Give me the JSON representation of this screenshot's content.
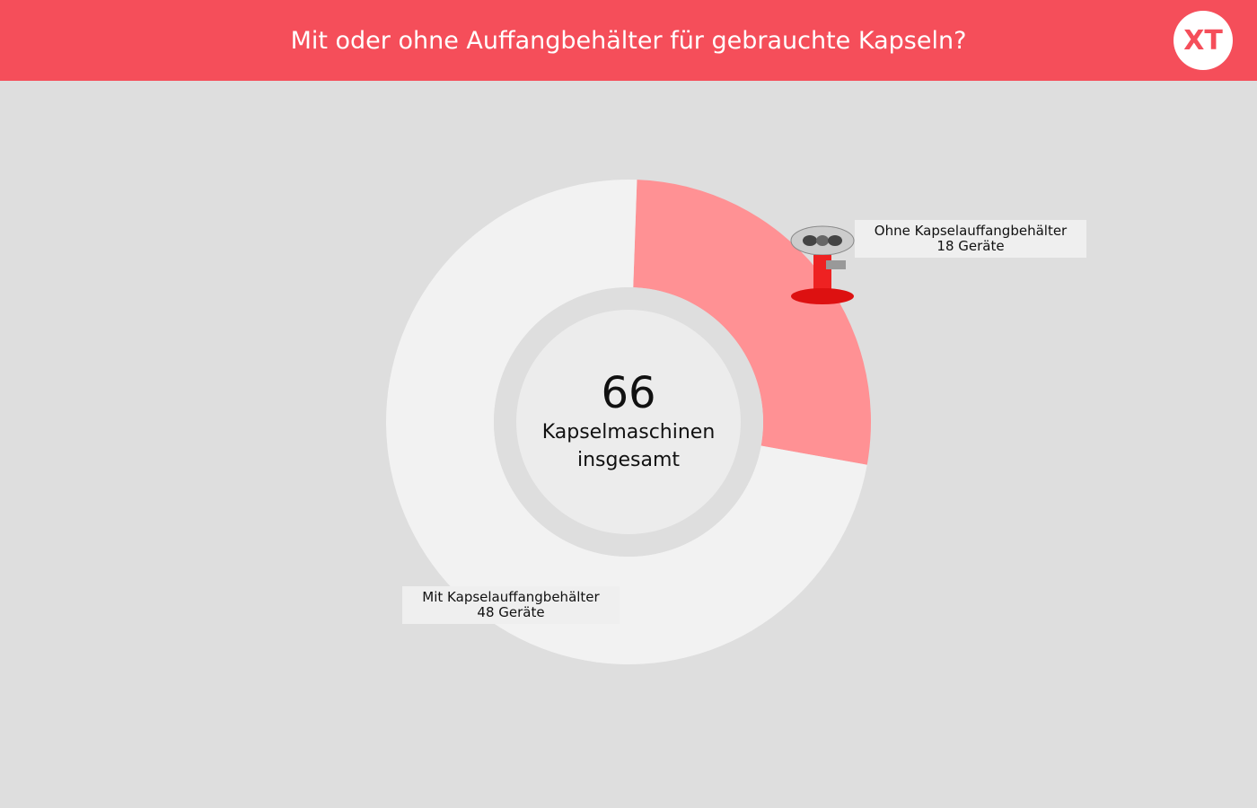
{
  "header": {
    "title": "Mit oder ohne Auffangbehälter für gebrauchte Kapseln?",
    "logo": "XT"
  },
  "chart_data": {
    "type": "donut",
    "center_value": 66,
    "center_label": "Kapselmaschinen insgesamt",
    "categories": [
      "Ohne Kapselauffangbehälter",
      "Mit Kapselauffangbehälter"
    ],
    "values": [
      18,
      48
    ],
    "value_labels": [
      "18 Geräte",
      "48 Geräte"
    ],
    "colors": [
      "#ff9194",
      "#f2f2f2"
    ]
  }
}
